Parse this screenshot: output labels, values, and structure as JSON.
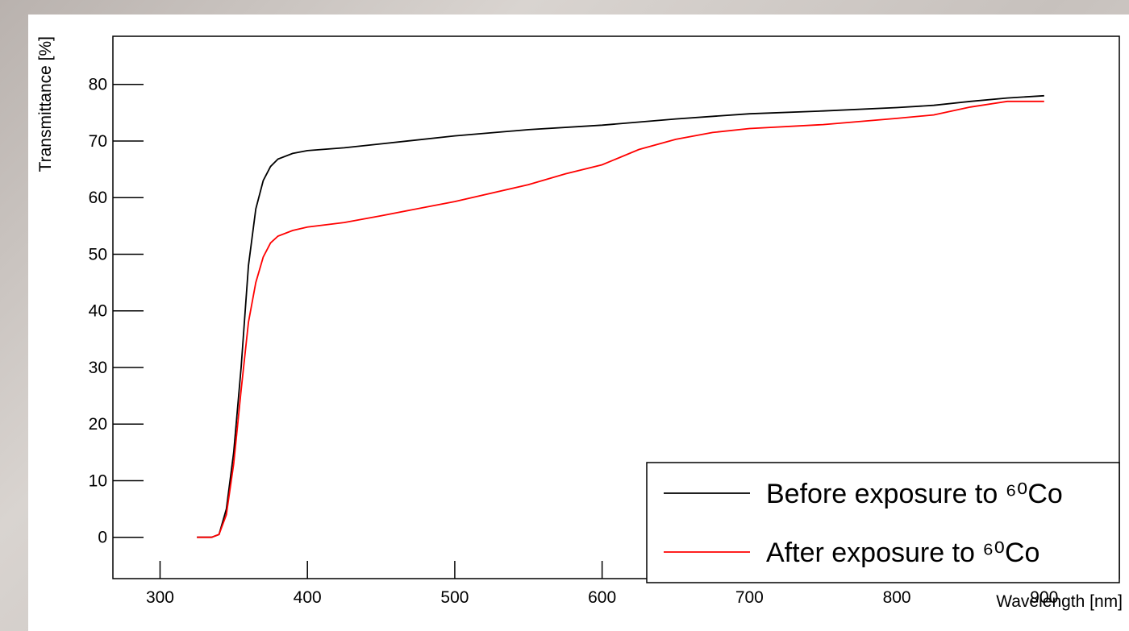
{
  "chart_data": {
    "type": "line",
    "xlabel": "Wavelength [nm]",
    "ylabel": "Transmittance [%]",
    "xlim": [
      268,
      951
    ],
    "ylim": [
      -7.3,
      88.5
    ],
    "xticks": [
      300,
      400,
      500,
      600,
      700,
      800,
      900
    ],
    "yticks": [
      0,
      10,
      20,
      30,
      40,
      50,
      60,
      70,
      80
    ],
    "legend": "lower-right",
    "series": [
      {
        "name": "Before exposure to ⁶⁰Co",
        "color": "#000000",
        "x": [
          325,
          335,
          340,
          345,
          350,
          355,
          360,
          365,
          370,
          375,
          380,
          390,
          400,
          425,
          450,
          500,
          550,
          600,
          650,
          700,
          750,
          800,
          825,
          850,
          875,
          900
        ],
        "values": [
          0,
          0,
          0.5,
          5,
          15,
          30,
          48,
          58,
          63,
          65.5,
          66.8,
          67.8,
          68.3,
          68.8,
          69.5,
          70.9,
          72,
          72.8,
          73.9,
          74.8,
          75.3,
          75.9,
          76.3,
          77,
          77.6,
          78
        ]
      },
      {
        "name": "After exposure to ⁶⁰Co",
        "color": "#ff0000",
        "x": [
          325,
          335,
          340,
          345,
          350,
          355,
          360,
          365,
          370,
          375,
          380,
          390,
          400,
          425,
          450,
          500,
          550,
          575,
          600,
          625,
          650,
          675,
          700,
          750,
          800,
          825,
          850,
          875,
          900
        ],
        "values": [
          0,
          0,
          0.5,
          4,
          13,
          26,
          38,
          45,
          49.5,
          52,
          53.2,
          54.2,
          54.8,
          55.6,
          56.8,
          59.3,
          62.3,
          64.2,
          65.8,
          68.5,
          70.3,
          71.5,
          72.2,
          72.9,
          74,
          74.6,
          76,
          77,
          77
        ]
      }
    ]
  }
}
